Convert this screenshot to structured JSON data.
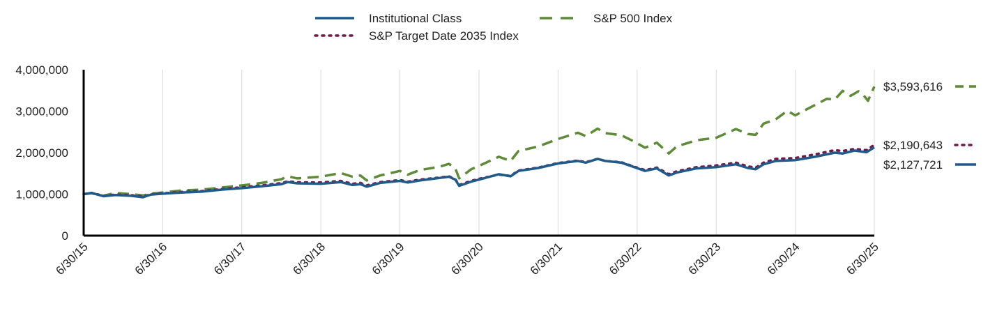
{
  "chart_data": {
    "type": "line",
    "title": "",
    "xlabel": "",
    "ylabel": "",
    "ylim": [
      0,
      4000000
    ],
    "y_ticks": [
      0,
      1000000,
      2000000,
      3000000,
      4000000
    ],
    "y_tick_labels": [
      "0",
      "1,000,000",
      "2,000,000",
      "3,000,000",
      "4,000,000"
    ],
    "x_range": [
      2015.5,
      2025.5
    ],
    "x_ticks": [
      2015.5,
      2016.5,
      2017.5,
      2018.5,
      2019.5,
      2020.5,
      2021.5,
      2022.5,
      2023.5,
      2024.5,
      2025.5
    ],
    "x_tick_labels": [
      "6/30/15",
      "6/30/16",
      "6/30/17",
      "6/30/18",
      "6/30/19",
      "6/30/20",
      "6/30/21",
      "6/30/22",
      "6/30/23",
      "6/30/24",
      "6/30/25"
    ],
    "grid": "vertical",
    "legend_position": "top",
    "series": [
      {
        "name": "Institutional Class",
        "color": "#1f5a8a",
        "style": "solid",
        "end_label": "$2,127,721",
        "points": [
          [
            2015.5,
            1000000
          ],
          [
            2015.6,
            1030000
          ],
          [
            2015.75,
            950000
          ],
          [
            2015.9,
            980000
          ],
          [
            2016.1,
            960000
          ],
          [
            2016.25,
            925000
          ],
          [
            2016.35,
            990000
          ],
          [
            2016.5,
            1010000
          ],
          [
            2016.75,
            1040000
          ],
          [
            2017.0,
            1060000
          ],
          [
            2017.25,
            1110000
          ],
          [
            2017.5,
            1145000
          ],
          [
            2017.75,
            1190000
          ],
          [
            2018.0,
            1240000
          ],
          [
            2018.08,
            1290000
          ],
          [
            2018.2,
            1260000
          ],
          [
            2018.5,
            1250000
          ],
          [
            2018.75,
            1290000
          ],
          [
            2018.9,
            1220000
          ],
          [
            2019.0,
            1240000
          ],
          [
            2019.08,
            1180000
          ],
          [
            2019.25,
            1270000
          ],
          [
            2019.5,
            1320000
          ],
          [
            2019.6,
            1280000
          ],
          [
            2019.75,
            1330000
          ],
          [
            2020.0,
            1390000
          ],
          [
            2020.12,
            1420000
          ],
          [
            2020.2,
            1350000
          ],
          [
            2020.25,
            1200000
          ],
          [
            2020.4,
            1300000
          ],
          [
            2020.5,
            1350000
          ],
          [
            2020.75,
            1480000
          ],
          [
            2020.9,
            1430000
          ],
          [
            2021.0,
            1560000
          ],
          [
            2021.25,
            1630000
          ],
          [
            2021.5,
            1740000
          ],
          [
            2021.75,
            1800000
          ],
          [
            2021.85,
            1760000
          ],
          [
            2022.0,
            1850000
          ],
          [
            2022.1,
            1800000
          ],
          [
            2022.3,
            1760000
          ],
          [
            2022.45,
            1660000
          ],
          [
            2022.6,
            1560000
          ],
          [
            2022.75,
            1620000
          ],
          [
            2022.9,
            1450000
          ],
          [
            2023.0,
            1520000
          ],
          [
            2023.25,
            1620000
          ],
          [
            2023.5,
            1650000
          ],
          [
            2023.75,
            1720000
          ],
          [
            2023.9,
            1630000
          ],
          [
            2024.0,
            1600000
          ],
          [
            2024.1,
            1720000
          ],
          [
            2024.25,
            1800000
          ],
          [
            2024.5,
            1820000
          ],
          [
            2024.75,
            1900000
          ],
          [
            2025.0,
            2000000
          ],
          [
            2025.1,
            1980000
          ],
          [
            2025.25,
            2050000
          ],
          [
            2025.4,
            2010000
          ],
          [
            2025.5,
            2127721
          ]
        ]
      },
      {
        "name": "S&P Target Date 2035 Index",
        "color": "#6e1a4a",
        "style": "dotted",
        "end_label": "$2,190,643",
        "points": [
          [
            2015.5,
            1000000
          ],
          [
            2015.6,
            1030000
          ],
          [
            2015.75,
            960000
          ],
          [
            2015.9,
            990000
          ],
          [
            2016.1,
            975000
          ],
          [
            2016.25,
            940000
          ],
          [
            2016.35,
            1000000
          ],
          [
            2016.5,
            1020000
          ],
          [
            2016.75,
            1055000
          ],
          [
            2017.0,
            1075000
          ],
          [
            2017.25,
            1125000
          ],
          [
            2017.5,
            1165000
          ],
          [
            2017.75,
            1210000
          ],
          [
            2018.0,
            1265000
          ],
          [
            2018.08,
            1310000
          ],
          [
            2018.2,
            1285000
          ],
          [
            2018.5,
            1280000
          ],
          [
            2018.75,
            1320000
          ],
          [
            2018.9,
            1250000
          ],
          [
            2019.0,
            1270000
          ],
          [
            2019.08,
            1210000
          ],
          [
            2019.25,
            1290000
          ],
          [
            2019.5,
            1340000
          ],
          [
            2019.6,
            1300000
          ],
          [
            2019.75,
            1350000
          ],
          [
            2020.0,
            1400000
          ],
          [
            2020.12,
            1430000
          ],
          [
            2020.2,
            1360000
          ],
          [
            2020.25,
            1220000
          ],
          [
            2020.4,
            1320000
          ],
          [
            2020.5,
            1370000
          ],
          [
            2020.75,
            1470000
          ],
          [
            2020.9,
            1440000
          ],
          [
            2021.0,
            1570000
          ],
          [
            2021.25,
            1640000
          ],
          [
            2021.5,
            1750000
          ],
          [
            2021.75,
            1810000
          ],
          [
            2021.85,
            1770000
          ],
          [
            2022.0,
            1850000
          ],
          [
            2022.1,
            1800000
          ],
          [
            2022.3,
            1770000
          ],
          [
            2022.45,
            1670000
          ],
          [
            2022.6,
            1580000
          ],
          [
            2022.75,
            1640000
          ],
          [
            2022.9,
            1480000
          ],
          [
            2023.0,
            1550000
          ],
          [
            2023.25,
            1650000
          ],
          [
            2023.5,
            1690000
          ],
          [
            2023.75,
            1760000
          ],
          [
            2023.9,
            1670000
          ],
          [
            2024.0,
            1640000
          ],
          [
            2024.1,
            1760000
          ],
          [
            2024.25,
            1850000
          ],
          [
            2024.5,
            1870000
          ],
          [
            2024.75,
            1960000
          ],
          [
            2025.0,
            2060000
          ],
          [
            2025.1,
            2040000
          ],
          [
            2025.25,
            2090000
          ],
          [
            2025.4,
            2060000
          ],
          [
            2025.5,
            2190643
          ]
        ]
      },
      {
        "name": "S&P 500 Index",
        "color": "#5e8a3a",
        "style": "dashed",
        "end_label": "$3,593,616",
        "points": [
          [
            2015.5,
            1000000
          ],
          [
            2015.6,
            1020000
          ],
          [
            2015.75,
            960000
          ],
          [
            2015.9,
            1030000
          ],
          [
            2016.1,
            1000000
          ],
          [
            2016.25,
            970000
          ],
          [
            2016.35,
            1010000
          ],
          [
            2016.5,
            1040000
          ],
          [
            2016.75,
            1090000
          ],
          [
            2017.0,
            1110000
          ],
          [
            2017.25,
            1160000
          ],
          [
            2017.5,
            1210000
          ],
          [
            2017.75,
            1270000
          ],
          [
            2018.0,
            1360000
          ],
          [
            2018.08,
            1430000
          ],
          [
            2018.2,
            1380000
          ],
          [
            2018.5,
            1420000
          ],
          [
            2018.75,
            1510000
          ],
          [
            2018.9,
            1420000
          ],
          [
            2019.0,
            1450000
          ],
          [
            2019.08,
            1330000
          ],
          [
            2019.25,
            1450000
          ],
          [
            2019.5,
            1560000
          ],
          [
            2019.6,
            1470000
          ],
          [
            2019.75,
            1580000
          ],
          [
            2020.0,
            1660000
          ],
          [
            2020.12,
            1730000
          ],
          [
            2020.2,
            1620000
          ],
          [
            2020.25,
            1380000
          ],
          [
            2020.4,
            1600000
          ],
          [
            2020.5,
            1680000
          ],
          [
            2020.75,
            1900000
          ],
          [
            2020.9,
            1800000
          ],
          [
            2021.0,
            2040000
          ],
          [
            2021.25,
            2150000
          ],
          [
            2021.5,
            2330000
          ],
          [
            2021.75,
            2480000
          ],
          [
            2021.85,
            2400000
          ],
          [
            2022.0,
            2580000
          ],
          [
            2022.1,
            2470000
          ],
          [
            2022.3,
            2420000
          ],
          [
            2022.45,
            2280000
          ],
          [
            2022.6,
            2120000
          ],
          [
            2022.75,
            2240000
          ],
          [
            2022.9,
            1980000
          ],
          [
            2023.0,
            2150000
          ],
          [
            2023.25,
            2300000
          ],
          [
            2023.5,
            2360000
          ],
          [
            2023.75,
            2570000
          ],
          [
            2023.9,
            2450000
          ],
          [
            2024.0,
            2430000
          ],
          [
            2024.1,
            2700000
          ],
          [
            2024.25,
            2800000
          ],
          [
            2024.4,
            3010000
          ],
          [
            2024.5,
            2900000
          ],
          [
            2024.6,
            3000000
          ],
          [
            2024.75,
            3150000
          ],
          [
            2024.9,
            3300000
          ],
          [
            2025.0,
            3280000
          ],
          [
            2025.1,
            3490000
          ],
          [
            2025.2,
            3370000
          ],
          [
            2025.3,
            3480000
          ],
          [
            2025.35,
            3420000
          ],
          [
            2025.42,
            3250000
          ],
          [
            2025.5,
            3593616
          ]
        ]
      }
    ],
    "legend_order": [
      0,
      2,
      1
    ]
  }
}
